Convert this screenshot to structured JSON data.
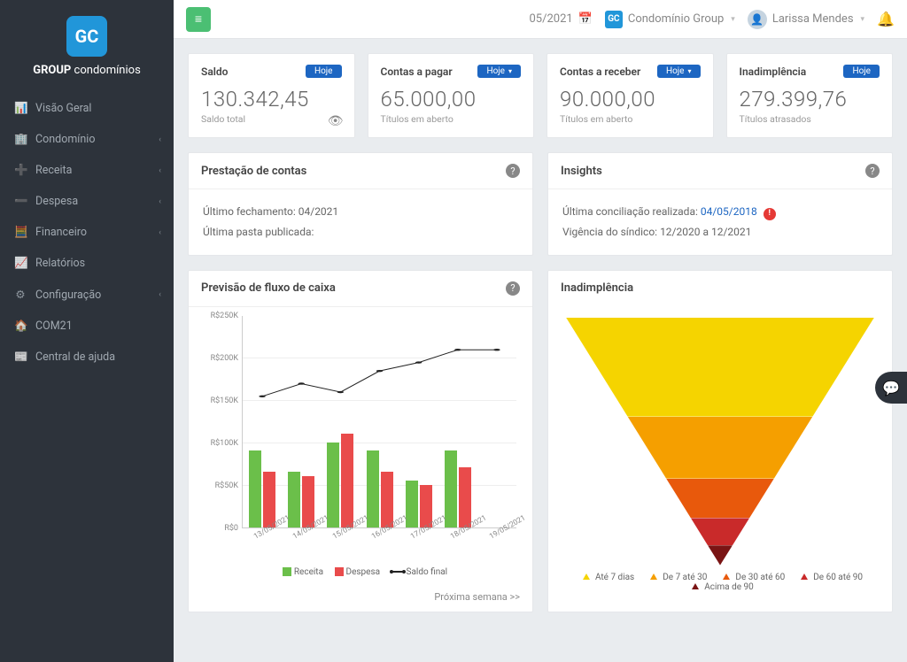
{
  "brand": {
    "short": "GC",
    "line1": "GROUP",
    "line2": "condomínios"
  },
  "sidebar": {
    "items": [
      {
        "icon": "📊",
        "label": "Visão Geral",
        "expandable": false
      },
      {
        "icon": "🏢",
        "label": "Condomínio",
        "expandable": true
      },
      {
        "icon": "➕",
        "label": "Receita",
        "expandable": true
      },
      {
        "icon": "➖",
        "label": "Despesa",
        "expandable": true
      },
      {
        "icon": "🧮",
        "label": "Financeiro",
        "expandable": true
      },
      {
        "icon": "📈",
        "label": "Relatórios",
        "expandable": false
      },
      {
        "icon": "⚙",
        "label": "Configuração",
        "expandable": true
      },
      {
        "icon": "🏠",
        "label": "COM21",
        "expandable": false
      },
      {
        "icon": "📰",
        "label": "Central de ajuda",
        "expandable": false
      }
    ]
  },
  "topbar": {
    "date": "05/2021",
    "group": "Condomínio Group",
    "user": "Larissa Mendes"
  },
  "summary": [
    {
      "label": "Saldo",
      "pill": "Hoje",
      "pill_caret": false,
      "value": "130.342,45",
      "sub": "Saldo total",
      "eye": true
    },
    {
      "label": "Contas a pagar",
      "pill": "Hoje",
      "pill_caret": true,
      "value": "65.000,00",
      "sub": "Títulos em aberto",
      "eye": false
    },
    {
      "label": "Contas a receber",
      "pill": "Hoje",
      "pill_caret": true,
      "value": "90.000,00",
      "sub": "Títulos em aberto",
      "eye": false
    },
    {
      "label": "Inadimplência",
      "pill": "Hoje",
      "pill_caret": false,
      "value": "279.399,76",
      "sub": "Títulos atrasados",
      "eye": false
    }
  ],
  "prestacao": {
    "title": "Prestação de contas",
    "line1": "Último fechamento: 04/2021",
    "line2": "Última pasta publicada:"
  },
  "insights": {
    "title": "Insights",
    "line1_pre": "Última conciliação realizada: ",
    "line1_date": "04/05/2018",
    "line2": "Vigência do síndico: 12/2020 a 12/2021"
  },
  "cashflow": {
    "title": "Previsão de fluxo de caixa",
    "ylabel_prefix": "R$",
    "ymax": 250,
    "ystep": 50,
    "yticks": [
      "R$250K",
      "R$200K",
      "R$150K",
      "R$100K",
      "R$50K",
      "R$0"
    ],
    "categories": [
      "13/05/2021",
      "14/05/2021",
      "15/05/2021",
      "16/05/2021",
      "17/05/2021",
      "18/05/2021",
      "19/05/2021"
    ],
    "receita": [
      90,
      65,
      100,
      90,
      55,
      90,
      0
    ],
    "despesa": [
      65,
      60,
      110,
      65,
      50,
      70,
      0
    ],
    "saldo": [
      155,
      170,
      160,
      185,
      195,
      210,
      210
    ],
    "colors": {
      "receita": "#6bbf4a",
      "despesa": "#e94b4b",
      "saldo": "#222222",
      "grid": "#eeeeee",
      "axis": "#cccccc"
    },
    "legend": {
      "receita": "Receita",
      "despesa": "Despesa",
      "saldo": "Saldo final"
    },
    "footer_link": "Próxima semana >>"
  },
  "funnel": {
    "title": "Inadimplência",
    "slices": [
      {
        "label": "Até 7 dias",
        "color": "#f5d400",
        "height_pct": 40
      },
      {
        "label": "De 7 até 30",
        "color": "#f59f00",
        "height_pct": 25
      },
      {
        "label": "De 30 até 60",
        "color": "#e8590c",
        "height_pct": 16
      },
      {
        "label": "De 60 até 90",
        "color": "#c92a2a",
        "height_pct": 11
      },
      {
        "label": "Acima de 90",
        "color": "#7a1414",
        "height_pct": 8
      }
    ]
  }
}
